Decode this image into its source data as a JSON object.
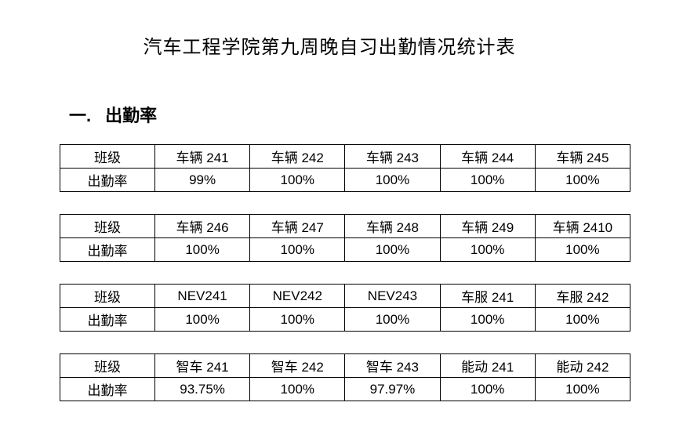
{
  "title": "汽车工程学院第九周晚自习出勤情况统计表",
  "section": {
    "number": "一.",
    "label": "出勤率"
  },
  "row_labels": {
    "class": "班级",
    "rate": "出勤率"
  },
  "tables": [
    {
      "classes": [
        "车辆 241",
        "车辆 242",
        "车辆 243",
        "车辆 244",
        "车辆 245"
      ],
      "rates": [
        "99%",
        "100%",
        "100%",
        "100%",
        "100%"
      ]
    },
    {
      "classes": [
        "车辆 246",
        "车辆 247",
        "车辆 248",
        "车辆 249",
        "车辆 2410"
      ],
      "rates": [
        "100%",
        "100%",
        "100%",
        "100%",
        "100%"
      ]
    },
    {
      "classes": [
        "NEV241",
        "NEV242",
        "NEV243",
        "车服 241",
        "车服 242"
      ],
      "rates": [
        "100%",
        "100%",
        "100%",
        "100%",
        "100%"
      ]
    },
    {
      "classes": [
        "智车 241",
        "智车 242",
        "智车 243",
        "能动 241",
        "能动 242"
      ],
      "rates": [
        "93.75%",
        "100%",
        "97.97%",
        "100%",
        "100%"
      ]
    }
  ]
}
